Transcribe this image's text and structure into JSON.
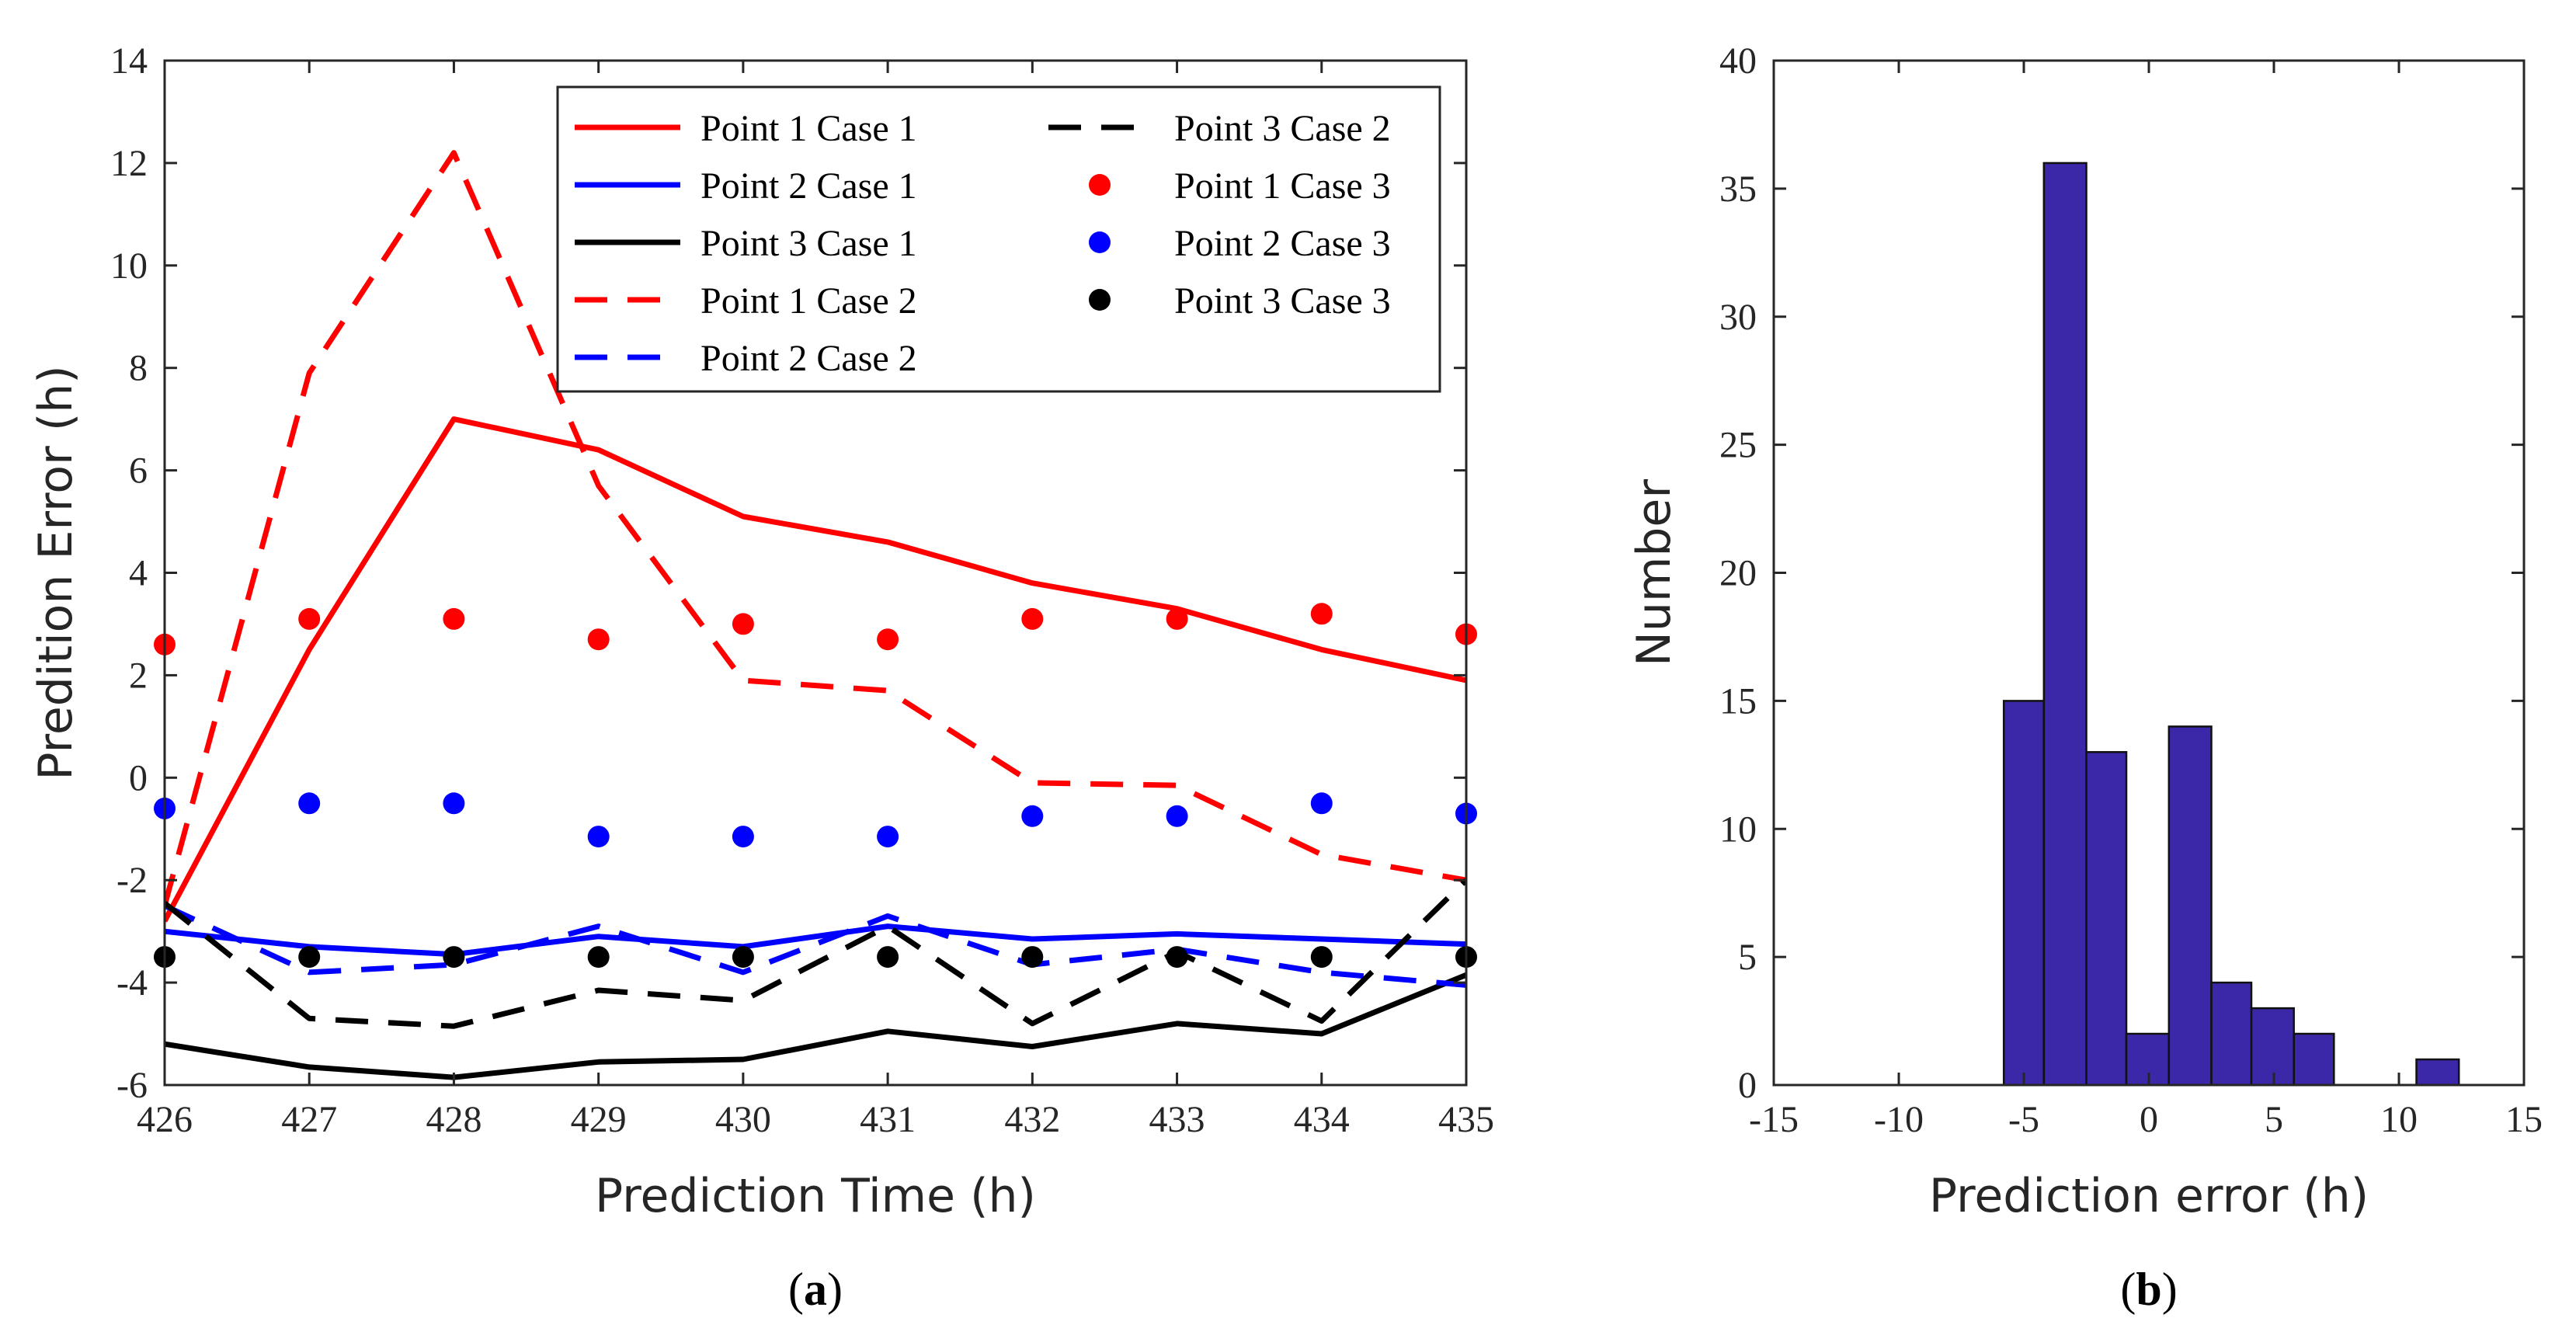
{
  "chart_data": [
    {
      "id": "a",
      "type": "line",
      "panel_label": "a",
      "xlabel": "Prediction Time (h)",
      "ylabel": "Predition Error (h)",
      "xlim": [
        426,
        435
      ],
      "ylim": [
        -6,
        14
      ],
      "xticks": [
        426,
        427,
        428,
        429,
        430,
        431,
        432,
        433,
        434,
        435
      ],
      "yticks": [
        -6,
        -4,
        -2,
        0,
        2,
        4,
        6,
        8,
        10,
        12,
        14
      ],
      "x": [
        426,
        427,
        428,
        429,
        430,
        431,
        432,
        433,
        434,
        435
      ],
      "series": [
        {
          "name": "Point 1 Case 1",
          "color": "#ff0000",
          "style": "solid",
          "values": [
            -2.8,
            2.5,
            7.0,
            6.4,
            5.1,
            4.6,
            3.8,
            3.3,
            2.5,
            1.9
          ]
        },
        {
          "name": "Point 2 Case 1",
          "color": "#0000ff",
          "style": "solid",
          "values": [
            -3.0,
            -3.3,
            -3.45,
            -3.1,
            -3.3,
            -2.9,
            -3.15,
            -3.05,
            -3.15,
            -3.25
          ]
        },
        {
          "name": "Point 3 Case 1",
          "color": "#000000",
          "style": "solid",
          "values": [
            -5.2,
            -5.65,
            -5.85,
            -5.55,
            -5.5,
            -4.95,
            -5.25,
            -4.8,
            -5.0,
            -3.85
          ]
        },
        {
          "name": "Point 1 Case 2",
          "color": "#ff0000",
          "style": "dashed",
          "values": [
            -2.5,
            7.9,
            12.2,
            5.7,
            1.9,
            1.7,
            -0.1,
            -0.15,
            -1.5,
            -2.0
          ]
        },
        {
          "name": "Point 2 Case 2",
          "color": "#0000ff",
          "style": "dashed",
          "values": [
            -2.5,
            -3.8,
            -3.65,
            -2.9,
            -3.8,
            -2.7,
            -3.65,
            -3.35,
            -3.8,
            -4.05
          ]
        },
        {
          "name": "Point 3 Case 2",
          "color": "#000000",
          "style": "dashed",
          "values": [
            -2.45,
            -4.7,
            -4.85,
            -4.15,
            -4.35,
            -2.9,
            -4.8,
            -3.4,
            -4.75,
            -2.0
          ]
        },
        {
          "name": "Point 1 Case 3",
          "color": "#ff0000",
          "style": "markers",
          "values": [
            2.6,
            3.1,
            3.1,
            2.7,
            3.0,
            2.7,
            3.1,
            3.1,
            3.2,
            2.8
          ]
        },
        {
          "name": "Point 2 Case 3",
          "color": "#0000ff",
          "style": "markers",
          "values": [
            -0.6,
            -0.5,
            -0.5,
            -1.15,
            -1.15,
            -1.15,
            -0.75,
            -0.75,
            -0.5,
            -0.7
          ]
        },
        {
          "name": "Point 3 Case 3",
          "color": "#000000",
          "style": "markers",
          "values": [
            -3.5,
            -3.5,
            -3.5,
            -3.5,
            -3.5,
            -3.5,
            -3.5,
            -3.5,
            -3.5,
            -3.5
          ]
        }
      ],
      "legend": {
        "position": "top-right",
        "columns": [
          [
            "Point 1 Case 1",
            "Point 2 Case 1",
            "Point 3 Case 1",
            "Point 1 Case 2",
            "Point 2 Case 2"
          ],
          [
            "Point 3 Case 2",
            "Point 1 Case 3",
            "Point 2 Case 3",
            "Point 3 Case 3"
          ]
        ]
      }
    },
    {
      "id": "b",
      "type": "bar",
      "subtype": "histogram",
      "panel_label": "b",
      "xlabel": "Prediction error (h)",
      "ylabel": "Number",
      "xlim": [
        -15,
        15
      ],
      "ylim": [
        0,
        40
      ],
      "xticks": [
        -15,
        -10,
        -5,
        0,
        5,
        10,
        15
      ],
      "yticks": [
        0,
        5,
        10,
        15,
        20,
        25,
        30,
        35,
        40
      ],
      "bar_color": "#3a28a8",
      "bins": [
        {
          "left": -5.8,
          "right": -4.2,
          "count": 15
        },
        {
          "left": -4.2,
          "right": -2.5,
          "count": 36
        },
        {
          "left": -2.5,
          "right": -0.9,
          "count": 13
        },
        {
          "left": -0.9,
          "right": 0.8,
          "count": 2
        },
        {
          "left": 0.8,
          "right": 2.5,
          "count": 14
        },
        {
          "left": 2.5,
          "right": 4.1,
          "count": 4
        },
        {
          "left": 4.1,
          "right": 5.8,
          "count": 3
        },
        {
          "left": 5.8,
          "right": 7.4,
          "count": 2
        },
        {
          "left": 7.4,
          "right": 9.1,
          "count": 0
        },
        {
          "left": 9.1,
          "right": 10.7,
          "count": 0
        },
        {
          "left": 10.7,
          "right": 12.4,
          "count": 1
        }
      ]
    }
  ]
}
